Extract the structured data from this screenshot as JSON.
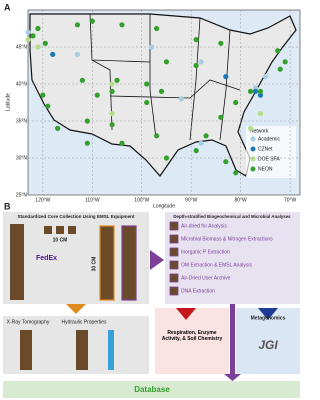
{
  "chart_data": {
    "type": "scatter",
    "panel": "A",
    "x_label": "Longitude",
    "y_label": "Latitude",
    "legend_title": "Network",
    "legend": "right",
    "xlim": [
      -123,
      -68
    ],
    "ylim": [
      25,
      50
    ],
    "xticks": [
      {
        "value": -120,
        "label": "120°W"
      },
      {
        "value": -110,
        "label": "110°W"
      },
      {
        "value": -100,
        "label": "100°W"
      },
      {
        "value": -90,
        "label": "90°W"
      },
      {
        "value": -80,
        "label": "80°W"
      },
      {
        "value": -70,
        "label": "70°W"
      }
    ],
    "yticks": [
      {
        "value": 45,
        "label": "45°N"
      },
      {
        "value": 40,
        "label": "40°N"
      },
      {
        "value": 35,
        "label": "35°N"
      },
      {
        "value": 30,
        "label": "30°N"
      },
      {
        "value": 25,
        "label": "25°N"
      }
    ],
    "grid": true,
    "series": [
      {
        "name": "Academic",
        "color": "#a6cee3",
        "x": [
          -123,
          -113,
          -98,
          -88,
          -92,
          -75,
          -77,
          -88
        ],
        "y": [
          47,
          44,
          45,
          43,
          38,
          41,
          39.5,
          32
        ]
      },
      {
        "name": "CZNet",
        "color": "#1f78b4",
        "x": [
          -118,
          -77,
          -76,
          -83
        ],
        "y": [
          44,
          39,
          38.5,
          41
        ]
      },
      {
        "name": "DOE SFA",
        "color": "#b2df8a",
        "x": [
          -123,
          -121,
          -106,
          -106,
          -78,
          -76
        ],
        "y": [
          46,
          45,
          40,
          36,
          34,
          36
        ]
      },
      {
        "name": "NEON",
        "color": "#33a02c",
        "x": [
          -122,
          -121,
          -119.5,
          -113,
          -110,
          -104,
          -97,
          -89,
          -84,
          -72.5,
          -71,
          -72,
          -89,
          -95,
          -99,
          -96,
          -105,
          -106,
          -109,
          -112,
          -119,
          -120,
          -117,
          -111,
          -111,
          -104,
          -97,
          -95,
          -89,
          -87,
          -84,
          -81,
          -78,
          -76,
          -83,
          -81,
          -99,
          -106
        ],
        "y": [
          46.5,
          47.5,
          45.5,
          48,
          48.5,
          48,
          47.5,
          46,
          45.5,
          44.5,
          43,
          42,
          42.5,
          43,
          40,
          39,
          40.5,
          39,
          38.5,
          40.5,
          37,
          38.5,
          34,
          35,
          32,
          32,
          33,
          30,
          31,
          33,
          35.5,
          37.5,
          39,
          39,
          29.5,
          28,
          37.5,
          34.5
        ]
      }
    ]
  },
  "diagram": {
    "panel": "B",
    "collection": {
      "title": "Standardized Core Collection Using EMSL Equipment",
      "core_width": "10 CM",
      "core_length": "30 CM",
      "courier": "FedEx"
    },
    "analyses": {
      "title": "Depth-stratified Biogeochemical and Microbial Analyses",
      "items": [
        "Air-dried for Analysis",
        "Microbial Biomass & Nitrogen Extractions",
        "Inorganic P Extraction",
        "OM Extraction & EMSL Analysis",
        "Air-Dried User Archive",
        "DNA Extraction"
      ]
    },
    "physical": [
      "X-Ray Tomography",
      "Hydraulic Properties"
    ],
    "chemistry": "Respiration, Enzyme Activity, & Soil Chemistry",
    "genomics": {
      "title": "Metagenomics",
      "logo": "JGI"
    },
    "database": "Database"
  }
}
